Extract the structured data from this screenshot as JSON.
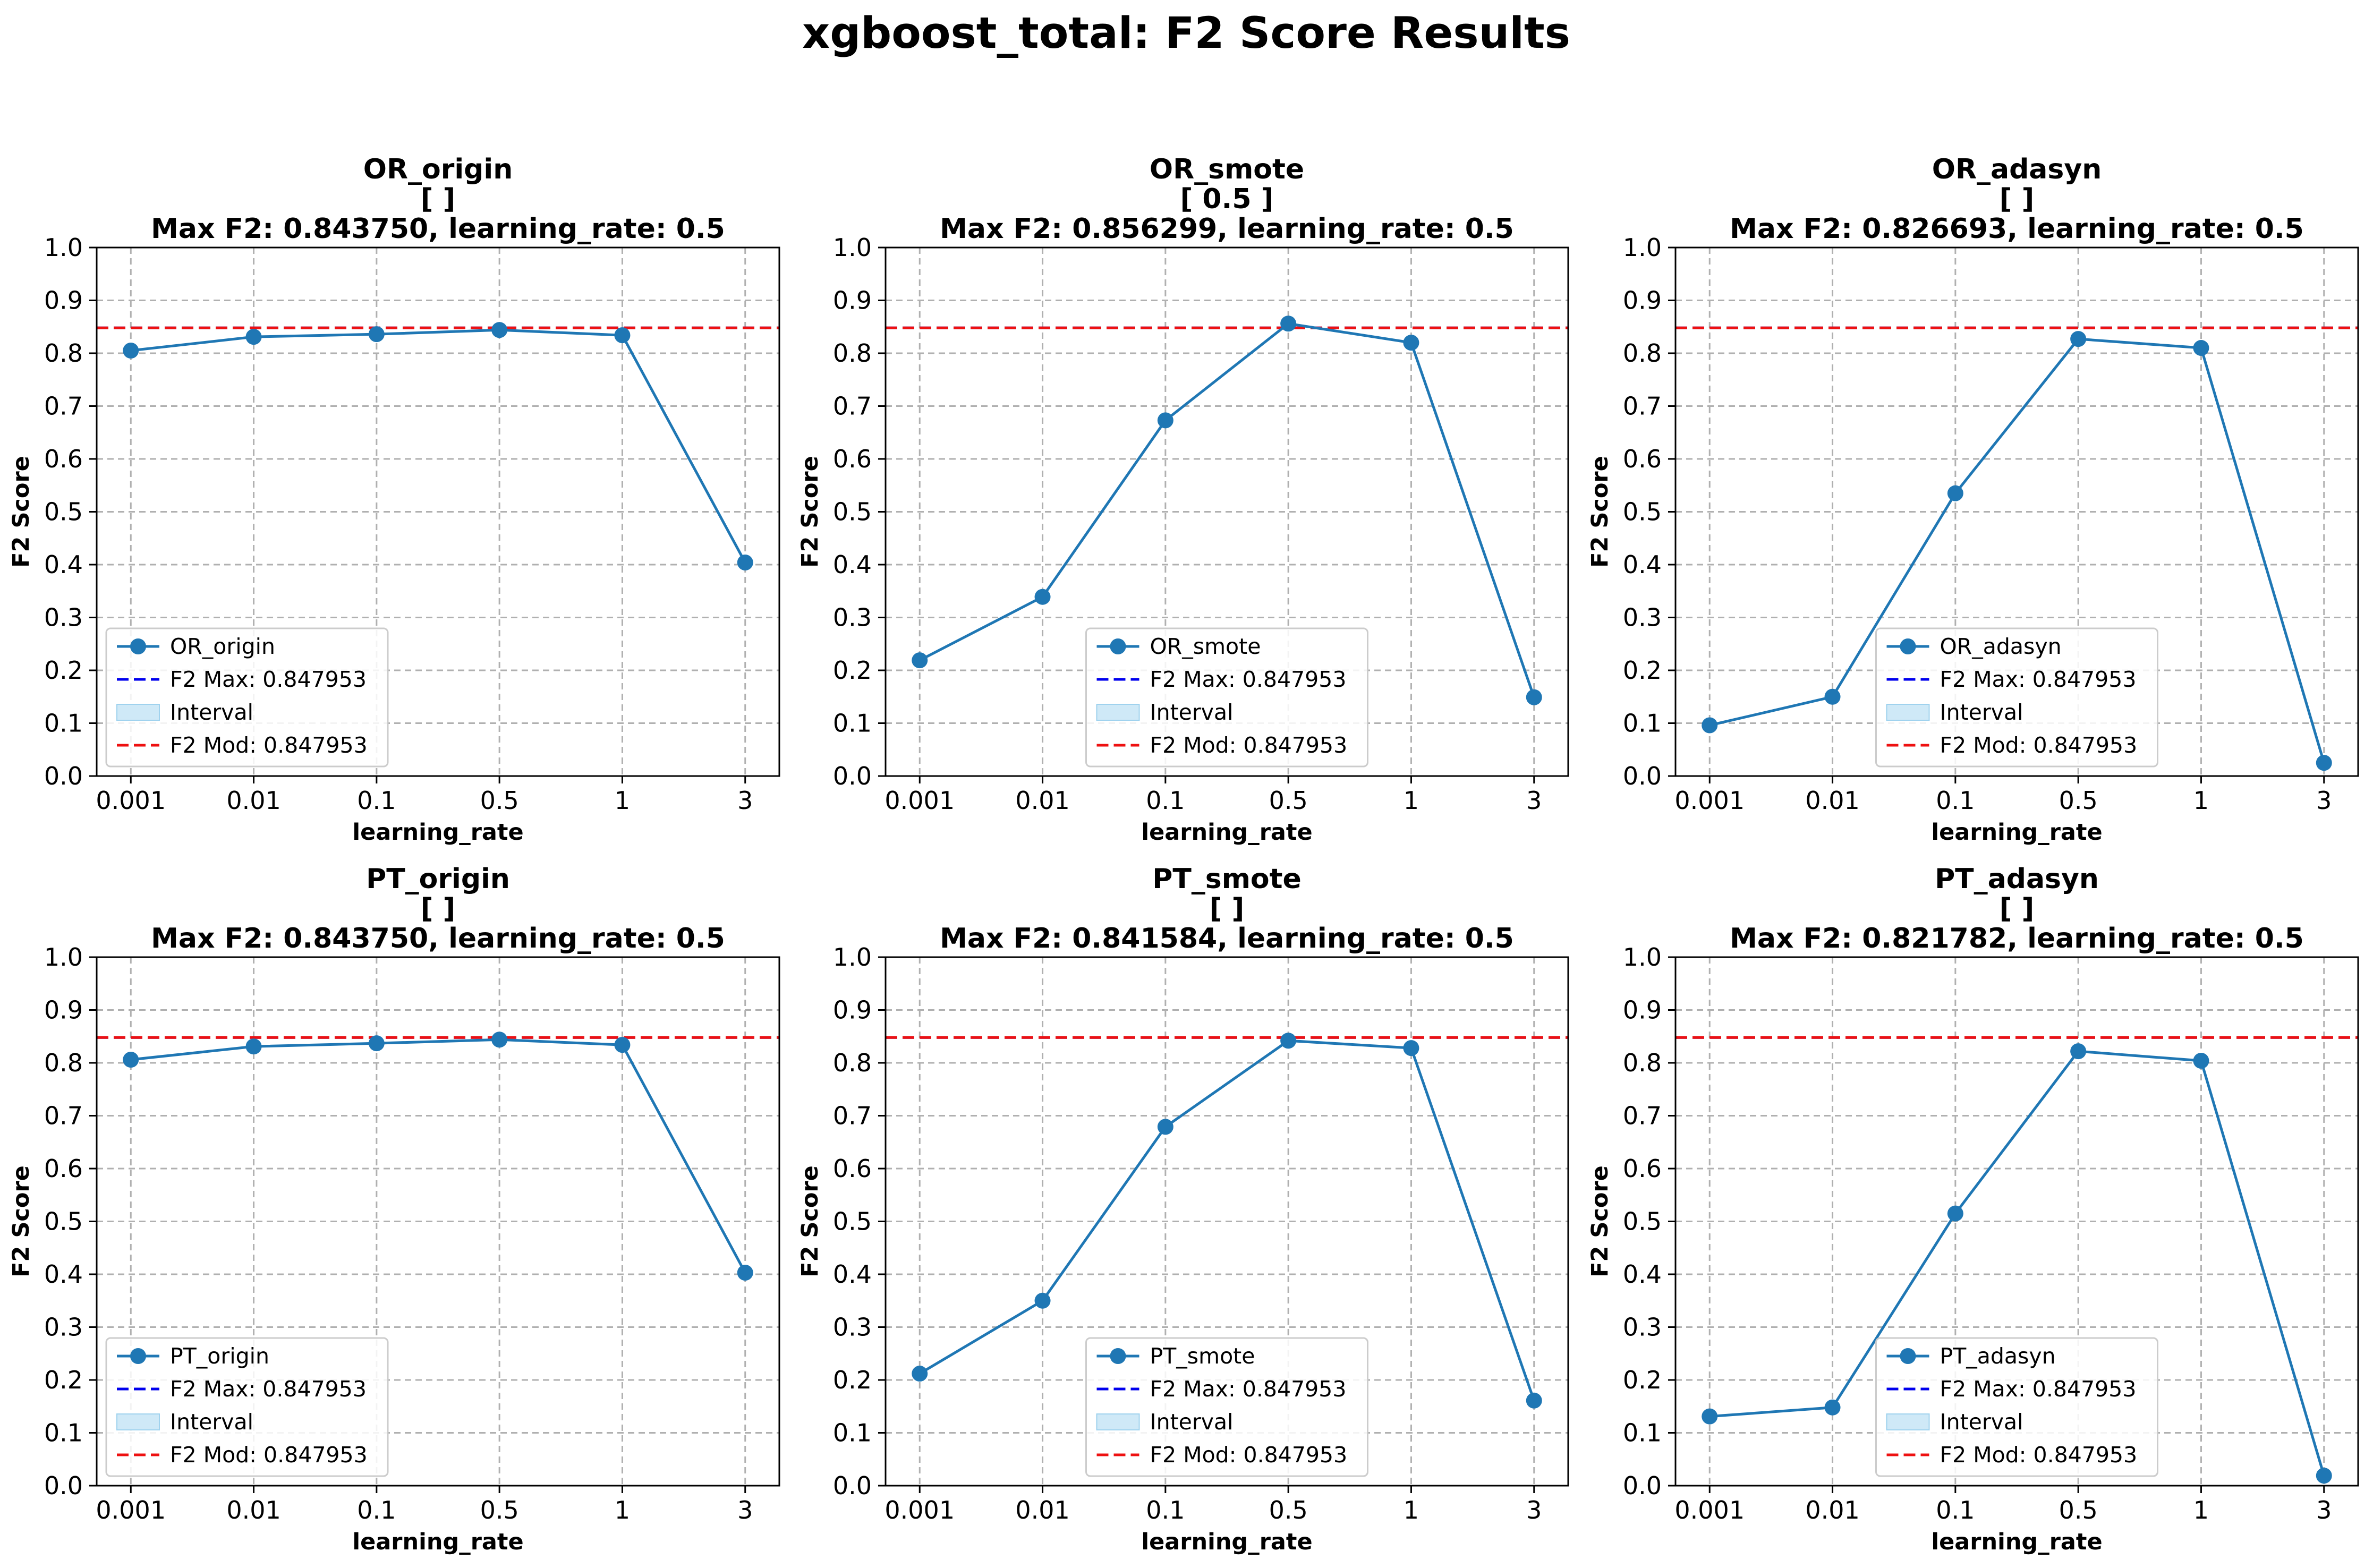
{
  "figure": {
    "title": "xgboost_total: F2 Score Results"
  },
  "chart_data": [
    {
      "type": "line",
      "title_lines": [
        "OR_origin",
        "[  ]",
        "Max F2: 0.843750, learning_rate: 0.5"
      ],
      "xlabel": "learning_rate",
      "ylabel": "F2 Score",
      "categories": [
        "0.001",
        "0.01",
        "0.1",
        "0.5",
        "1",
        "3"
      ],
      "series": [
        {
          "name": "OR_origin",
          "values": [
            0.805,
            0.831,
            0.836,
            0.844,
            0.834,
            0.404
          ]
        }
      ],
      "f2_max": 0.847953,
      "f2_mod": 0.847953,
      "legend_labels": [
        "OR_origin",
        "F2 Max: 0.847953",
        "Interval",
        "F2 Mod: 0.847953"
      ],
      "legend_position": "lower-left",
      "ylim": [
        0,
        1
      ],
      "yticks": [
        "0.0",
        "0.1",
        "0.2",
        "0.3",
        "0.4",
        "0.5",
        "0.6",
        "0.7",
        "0.8",
        "0.9",
        "1.0"
      ],
      "grid": true
    },
    {
      "type": "line",
      "title_lines": [
        "OR_smote",
        "[ 0.5 ]",
        "Max F2: 0.856299, learning_rate: 0.5"
      ],
      "xlabel": "learning_rate",
      "ylabel": "F2 Score",
      "categories": [
        "0.001",
        "0.01",
        "0.1",
        "0.5",
        "1",
        "3"
      ],
      "series": [
        {
          "name": "OR_smote",
          "values": [
            0.219,
            0.339,
            0.673,
            0.856,
            0.82,
            0.149
          ]
        }
      ],
      "f2_max": 0.847953,
      "f2_mod": 0.847953,
      "legend_labels": [
        "OR_smote",
        "F2 Max: 0.847953",
        "Interval",
        "F2 Mod: 0.847953"
      ],
      "legend_position": "lower-center",
      "ylim": [
        0,
        1
      ],
      "yticks": [
        "0.0",
        "0.1",
        "0.2",
        "0.3",
        "0.4",
        "0.5",
        "0.6",
        "0.7",
        "0.8",
        "0.9",
        "1.0"
      ],
      "grid": true
    },
    {
      "type": "line",
      "title_lines": [
        "OR_adasyn",
        "[  ]",
        "Max F2: 0.826693, learning_rate: 0.5"
      ],
      "xlabel": "learning_rate",
      "ylabel": "F2 Score",
      "categories": [
        "0.001",
        "0.01",
        "0.1",
        "0.5",
        "1",
        "3"
      ],
      "series": [
        {
          "name": "OR_adasyn",
          "values": [
            0.096,
            0.15,
            0.535,
            0.827,
            0.81,
            0.025
          ]
        }
      ],
      "f2_max": 0.847953,
      "f2_mod": 0.847953,
      "legend_labels": [
        "OR_adasyn",
        "F2 Max: 0.847953",
        "Interval",
        "F2 Mod: 0.847953"
      ],
      "legend_position": "lower-center",
      "ylim": [
        0,
        1
      ],
      "yticks": [
        "0.0",
        "0.1",
        "0.2",
        "0.3",
        "0.4",
        "0.5",
        "0.6",
        "0.7",
        "0.8",
        "0.9",
        "1.0"
      ],
      "grid": true
    },
    {
      "type": "line",
      "title_lines": [
        "PT_origin",
        "[  ]",
        "Max F2: 0.843750, learning_rate: 0.5"
      ],
      "xlabel": "learning_rate",
      "ylabel": "F2 Score",
      "categories": [
        "0.001",
        "0.01",
        "0.1",
        "0.5",
        "1",
        "3"
      ],
      "series": [
        {
          "name": "PT_origin",
          "values": [
            0.806,
            0.831,
            0.837,
            0.844,
            0.834,
            0.403
          ]
        }
      ],
      "f2_max": 0.847953,
      "f2_mod": 0.847953,
      "legend_labels": [
        "PT_origin",
        "F2 Max: 0.847953",
        "Interval",
        "F2 Mod: 0.847953"
      ],
      "legend_position": "lower-left",
      "ylim": [
        0,
        1
      ],
      "yticks": [
        "0.0",
        "0.1",
        "0.2",
        "0.3",
        "0.4",
        "0.5",
        "0.6",
        "0.7",
        "0.8",
        "0.9",
        "1.0"
      ],
      "grid": true
    },
    {
      "type": "line",
      "title_lines": [
        "PT_smote",
        "[  ]",
        "Max F2: 0.841584, learning_rate: 0.5"
      ],
      "xlabel": "learning_rate",
      "ylabel": "F2 Score",
      "categories": [
        "0.001",
        "0.01",
        "0.1",
        "0.5",
        "1",
        "3"
      ],
      "series": [
        {
          "name": "PT_smote",
          "values": [
            0.212,
            0.35,
            0.679,
            0.842,
            0.828,
            0.161
          ]
        }
      ],
      "f2_max": 0.847953,
      "f2_mod": 0.847953,
      "legend_labels": [
        "PT_smote",
        "F2 Max: 0.847953",
        "Interval",
        "F2 Mod: 0.847953"
      ],
      "legend_position": "lower-center",
      "ylim": [
        0,
        1
      ],
      "yticks": [
        "0.0",
        "0.1",
        "0.2",
        "0.3",
        "0.4",
        "0.5",
        "0.6",
        "0.7",
        "0.8",
        "0.9",
        "1.0"
      ],
      "grid": true
    },
    {
      "type": "line",
      "title_lines": [
        "PT_adasyn",
        "[  ]",
        "Max F2: 0.821782, learning_rate: 0.5"
      ],
      "xlabel": "learning_rate",
      "ylabel": "F2 Score",
      "categories": [
        "0.001",
        "0.01",
        "0.1",
        "0.5",
        "1",
        "3"
      ],
      "series": [
        {
          "name": "PT_adasyn",
          "values": [
            0.131,
            0.148,
            0.515,
            0.822,
            0.804,
            0.019
          ]
        }
      ],
      "f2_max": 0.847953,
      "f2_mod": 0.847953,
      "legend_labels": [
        "PT_adasyn",
        "F2 Max: 0.847953",
        "Interval",
        "F2 Mod: 0.847953"
      ],
      "legend_position": "lower-center",
      "ylim": [
        0,
        1
      ],
      "yticks": [
        "0.0",
        "0.1",
        "0.2",
        "0.3",
        "0.4",
        "0.5",
        "0.6",
        "0.7",
        "0.8",
        "0.9",
        "1.0"
      ],
      "grid": true
    }
  ],
  "colors": {
    "line": "#1f77b4",
    "f2_max": "#0000ee",
    "f2_mod": "#ee1111",
    "interval_fill": "#cfe9f7",
    "interval_edge": "#9fd2ee",
    "grid": "#b0b0b0"
  }
}
